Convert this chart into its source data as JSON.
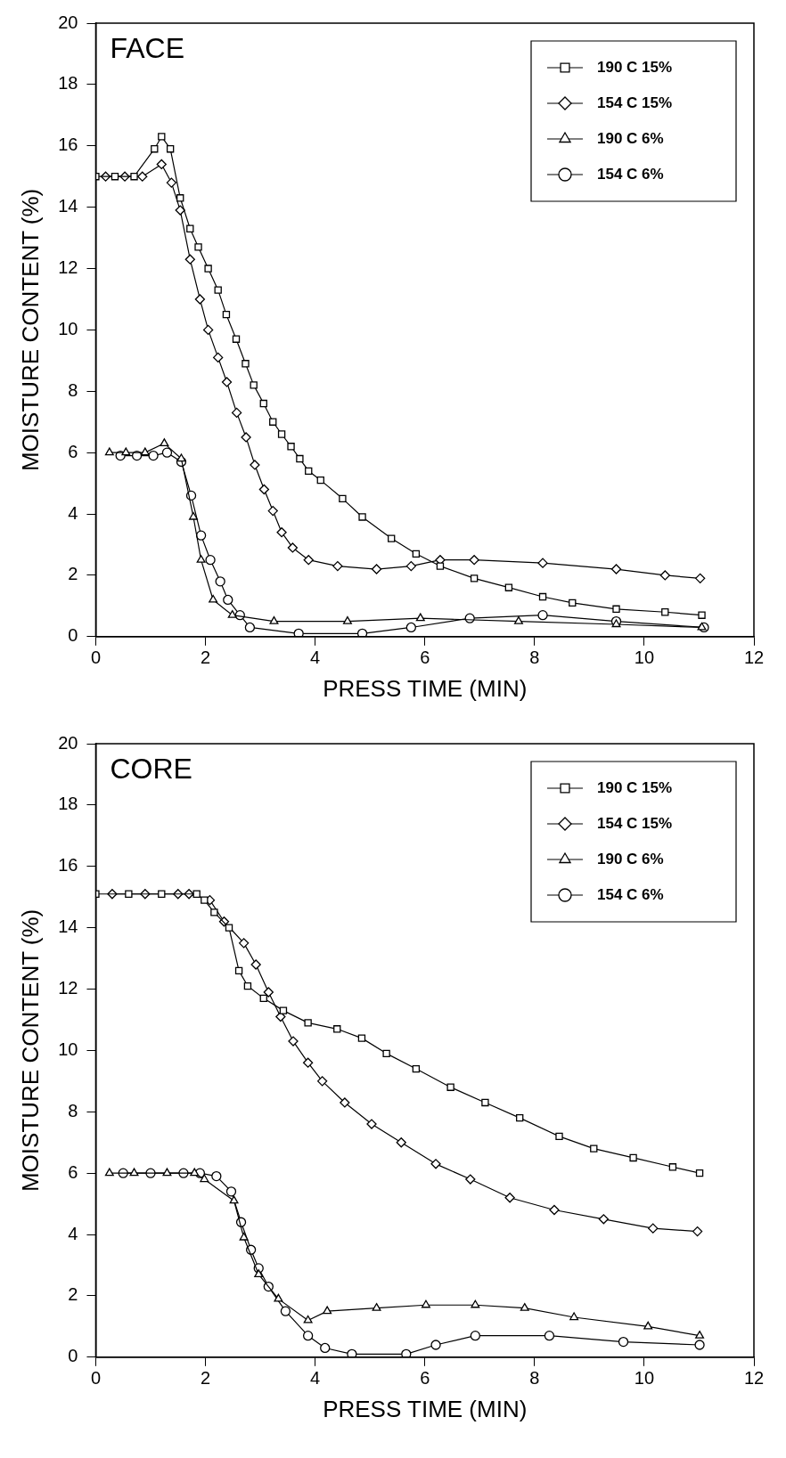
{
  "chart_data": [
    {
      "type": "line",
      "title": "FACE",
      "xlabel": "PRESS TIME (MIN)",
      "ylabel": "MOISTURE CONTENT (%)",
      "xlim": [
        0,
        12
      ],
      "xticks": [
        0,
        2,
        4,
        6,
        8,
        10,
        12
      ],
      "ylim": [
        0,
        20
      ],
      "yticks": [
        0,
        2,
        4,
        6,
        8,
        10,
        12,
        14,
        16,
        18,
        20
      ],
      "grid": false,
      "legend": "top right",
      "series": [
        {
          "name": "190 C 15%",
          "color": "#000000",
          "marker": "square",
          "x": [
            0,
            0.35,
            0.7,
            1.07,
            1.2,
            1.36,
            1.54,
            1.72,
            1.87,
            2.05,
            2.23,
            2.38,
            2.56,
            2.73,
            2.88,
            3.06,
            3.23,
            3.39,
            3.56,
            3.72,
            3.88,
            4.1,
            4.5,
            4.86,
            5.39,
            5.84,
            6.28,
            6.9,
            7.53,
            8.15,
            8.69,
            9.49,
            10.38,
            11.05
          ],
          "values": [
            15,
            15,
            15,
            15.9,
            16.3,
            15.9,
            14.3,
            13.3,
            12.7,
            12,
            11.3,
            10.5,
            9.7,
            8.9,
            8.2,
            7.6,
            7,
            6.6,
            6.2,
            5.8,
            5.4,
            5.1,
            4.5,
            3.9,
            3.2,
            2.7,
            2.3,
            1.9,
            1.6,
            1.3,
            1.1,
            0.9,
            0.8,
            0.7
          ]
        },
        {
          "name": "154 C 15%",
          "color": "#000000",
          "marker": "diamond",
          "x": [
            0.18,
            0.53,
            0.85,
            1.2,
            1.38,
            1.54,
            1.72,
            1.9,
            2.05,
            2.23,
            2.39,
            2.57,
            2.74,
            2.9,
            3.07,
            3.23,
            3.39,
            3.59,
            3.88,
            4.41,
            5.12,
            5.75,
            6.28,
            6.9,
            8.15,
            9.49,
            10.38,
            11.02
          ],
          "values": [
            15,
            15,
            15,
            15.4,
            14.8,
            13.9,
            12.3,
            11,
            10,
            9.1,
            8.3,
            7.3,
            6.5,
            5.6,
            4.8,
            4.1,
            3.4,
            2.9,
            2.5,
            2.3,
            2.2,
            2.3,
            2.5,
            2.5,
            2.4,
            2.2,
            2,
            1.9
          ]
        },
        {
          "name": "190 C 6%",
          "color": "#000000",
          "marker": "triangle",
          "x": [
            0.25,
            0.55,
            0.9,
            1.25,
            1.56,
            1.78,
            1.92,
            2.14,
            2.49,
            3.25,
            4.59,
            5.92,
            7.71,
            9.49,
            11.05
          ],
          "values": [
            6,
            6,
            6,
            6.3,
            5.8,
            3.9,
            2.5,
            1.2,
            0.7,
            0.5,
            0.5,
            0.6,
            0.5,
            0.4,
            0.3
          ]
        },
        {
          "name": "154 C 6%",
          "color": "#000000",
          "marker": "circle",
          "x": [
            0.45,
            0.75,
            1.05,
            1.3,
            1.56,
            1.74,
            1.92,
            2.09,
            2.27,
            2.41,
            2.63,
            2.81,
            3.7,
            4.86,
            5.75,
            6.82,
            8.15,
            9.49,
            11.09
          ],
          "values": [
            5.9,
            5.9,
            5.9,
            6,
            5.7,
            4.6,
            3.3,
            2.5,
            1.8,
            1.2,
            0.7,
            0.3,
            0.1,
            0.1,
            0.3,
            0.6,
            0.7,
            0.5,
            0.3
          ]
        }
      ]
    },
    {
      "type": "line",
      "title": "CORE",
      "xlabel": "PRESS TIME (MIN)",
      "ylabel": "MOISTURE CONTENT (%)",
      "xlim": [
        0,
        12
      ],
      "xticks": [
        0,
        2,
        4,
        6,
        8,
        10,
        12
      ],
      "ylim": [
        0,
        20
      ],
      "yticks": [
        0,
        2,
        4,
        6,
        8,
        10,
        12,
        14,
        16,
        18,
        20
      ],
      "grid": false,
      "legend": "top right",
      "series": [
        {
          "name": "190 C 15%",
          "color": "#000000",
          "marker": "square",
          "x": [
            0,
            0.6,
            1.2,
            1.84,
            1.98,
            2.16,
            2.43,
            2.61,
            2.77,
            3.06,
            3.42,
            3.87,
            4.4,
            4.85,
            5.3,
            5.84,
            6.47,
            7.1,
            7.73,
            8.45,
            9.08,
            9.8,
            10.52,
            11.01
          ],
          "values": [
            15.1,
            15.1,
            15.1,
            15.1,
            14.9,
            14.5,
            14,
            12.6,
            12.1,
            11.7,
            11.3,
            10.9,
            10.7,
            10.4,
            9.9,
            9.4,
            8.8,
            8.3,
            7.8,
            7.2,
            6.8,
            6.5,
            6.2,
            6
          ]
        },
        {
          "name": "154 C 15%",
          "color": "#000000",
          "marker": "diamond",
          "x": [
            0.3,
            0.9,
            1.5,
            1.7,
            2.08,
            2.34,
            2.7,
            2.92,
            3.15,
            3.37,
            3.6,
            3.87,
            4.13,
            4.54,
            5.03,
            5.57,
            6.2,
            6.83,
            7.55,
            8.36,
            9.26,
            10.16,
            10.97
          ],
          "values": [
            15.1,
            15.1,
            15.1,
            15.1,
            14.9,
            14.2,
            13.5,
            12.8,
            11.9,
            11.1,
            10.3,
            9.6,
            9,
            8.3,
            7.6,
            7,
            6.3,
            5.8,
            5.2,
            4.8,
            4.5,
            4.2,
            4.1
          ]
        },
        {
          "name": "190 C 6%",
          "color": "#000000",
          "marker": "triangle",
          "x": [
            0.25,
            0.7,
            1.3,
            1.8,
            1.98,
            2.52,
            2.7,
            2.97,
            3.33,
            3.87,
            4.22,
            5.12,
            6.02,
            6.92,
            7.82,
            8.72,
            10.07,
            11.01
          ],
          "values": [
            6,
            6,
            6,
            6,
            5.8,
            5.1,
            3.9,
            2.7,
            1.9,
            1.2,
            1.5,
            1.6,
            1.7,
            1.7,
            1.6,
            1.3,
            1,
            0.7
          ]
        },
        {
          "name": "154 C 6%",
          "color": "#000000",
          "marker": "circle",
          "x": [
            0.5,
            1,
            1.6,
            1.9,
            2.2,
            2.47,
            2.65,
            2.83,
            2.97,
            3.15,
            3.46,
            3.87,
            4.18,
            4.67,
            5.66,
            6.2,
            6.92,
            8.27,
            9.62,
            11.01
          ],
          "values": [
            6,
            6,
            6,
            6,
            5.9,
            5.4,
            4.4,
            3.5,
            2.9,
            2.3,
            1.5,
            0.7,
            0.3,
            0.1,
            0.1,
            0.4,
            0.7,
            0.7,
            0.5,
            0.4
          ]
        }
      ]
    }
  ]
}
